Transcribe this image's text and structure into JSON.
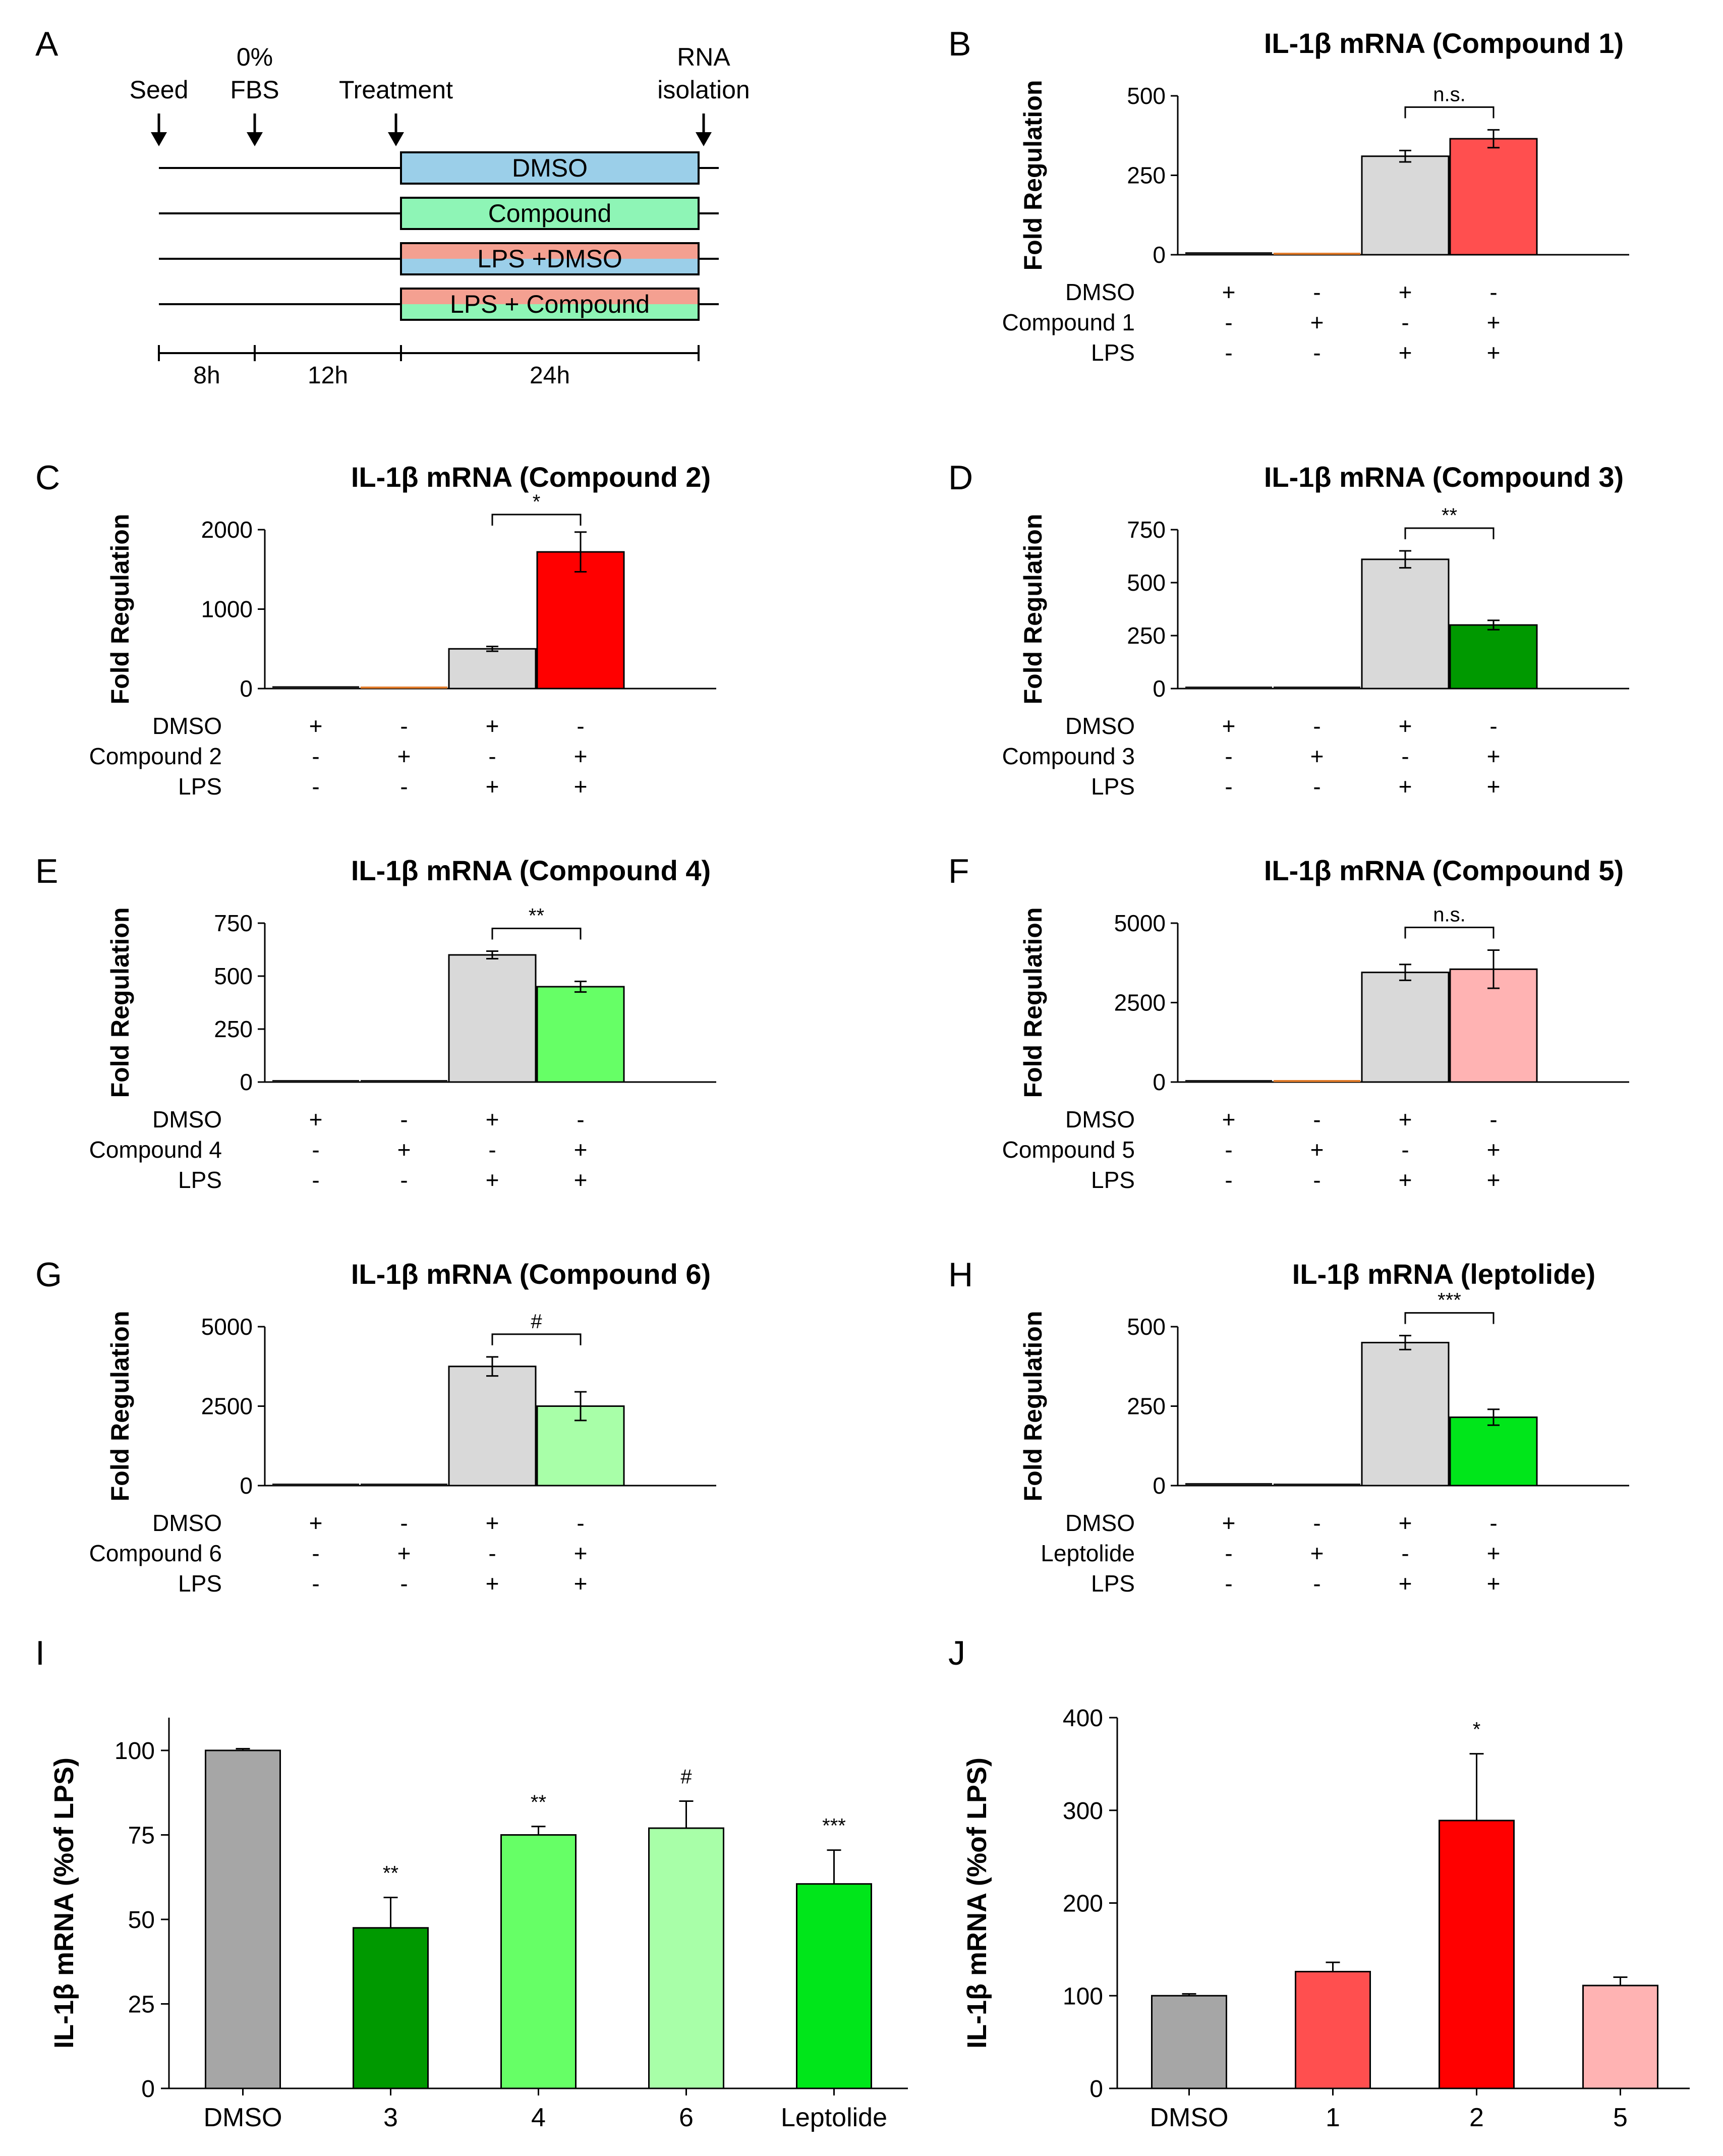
{
  "schema": {
    "panel": "A",
    "events": [
      {
        "line1": "",
        "line2": "Seed"
      },
      {
        "line1": "0%",
        "line2": "FBS"
      },
      {
        "line1": "",
        "line2": "Treatment"
      },
      {
        "line1": "RNA",
        "line2": "isolation"
      }
    ],
    "treatments": [
      {
        "label": "DMSO",
        "colors": [
          "#9bcfe9"
        ]
      },
      {
        "label": "Compound",
        "colors": [
          "#8ef5b6"
        ]
      },
      {
        "label": "LPS +DMSO",
        "colors": [
          "#f4a091",
          "#9bcfe9"
        ]
      },
      {
        "label": "LPS + Compound",
        "colors": [
          "#f4a091",
          "#8ef5b6"
        ]
      }
    ],
    "timeline": [
      "8h",
      "12h",
      "24h"
    ]
  },
  "chart_data": [
    {
      "panel": "B",
      "type": "bar",
      "title": "IL-1β mRNA (Compound 1)",
      "ylabel": "Fold Regulation",
      "yticks": [
        0,
        250,
        500
      ],
      "ylim": [
        0,
        500
      ],
      "values": [
        8,
        5,
        310,
        365
      ],
      "errors": [
        0,
        0,
        18,
        28
      ],
      "colors": [
        "#1a1a1a",
        "#e07b2b",
        "#d9d9d9",
        "#ff4f4f"
      ],
      "significance": "n.s.",
      "row_labels": [
        "DMSO",
        "Compound 1",
        "LPS"
      ],
      "rows": [
        [
          "+",
          "-",
          "+",
          "-"
        ],
        [
          "-",
          "+",
          "-",
          "+"
        ],
        [
          "-",
          "-",
          "+",
          "+"
        ]
      ]
    },
    {
      "panel": "C",
      "type": "bar",
      "title": "IL-1β mRNA (Compound 2)",
      "ylabel": "Fold Regulation",
      "yticks": [
        0,
        1000,
        2000
      ],
      "ylim": [
        0,
        2000
      ],
      "values": [
        30,
        3,
        500,
        1720
      ],
      "errors": [
        0,
        0,
        30,
        250
      ],
      "colors": [
        "#1a1a1a",
        "#e07b2b",
        "#d9d9d9",
        "#ff0000"
      ],
      "significance": "*",
      "row_labels": [
        "DMSO",
        "Compound 2",
        "LPS"
      ],
      "rows": [
        [
          "+",
          "-",
          "+",
          "-"
        ],
        [
          "-",
          "+",
          "-",
          "+"
        ],
        [
          "-",
          "-",
          "+",
          "+"
        ]
      ]
    },
    {
      "panel": "D",
      "type": "bar",
      "title": "IL-1β mRNA (Compound 3)",
      "ylabel": "Fold Regulation",
      "yticks": [
        0,
        250,
        500,
        750
      ],
      "ylim": [
        0,
        750
      ],
      "values": [
        8,
        6,
        610,
        300
      ],
      "errors": [
        0,
        0,
        40,
        22
      ],
      "colors": [
        "#1a1a1a",
        "#1a1a1a",
        "#d9d9d9",
        "#009900"
      ],
      "significance": "**",
      "row_labels": [
        "DMSO",
        "Compound 3",
        "LPS"
      ],
      "rows": [
        [
          "+",
          "-",
          "+",
          "-"
        ],
        [
          "-",
          "+",
          "-",
          "+"
        ],
        [
          "-",
          "-",
          "+",
          "+"
        ]
      ]
    },
    {
      "panel": "E",
      "type": "bar",
      "title": "IL-1β mRNA (Compound 4)",
      "ylabel": "Fold Regulation",
      "yticks": [
        0,
        250,
        500,
        750
      ],
      "ylim": [
        0,
        750
      ],
      "values": [
        8,
        6,
        600,
        450
      ],
      "errors": [
        0,
        0,
        18,
        25
      ],
      "colors": [
        "#1a1a1a",
        "#1a1a1a",
        "#d9d9d9",
        "#66ff66"
      ],
      "significance": "**",
      "row_labels": [
        "DMSO",
        "Compound 4",
        "LPS"
      ],
      "rows": [
        [
          "+",
          "-",
          "+",
          "-"
        ],
        [
          "-",
          "+",
          "-",
          "+"
        ],
        [
          "-",
          "-",
          "+",
          "+"
        ]
      ]
    },
    {
      "panel": "F",
      "type": "bar",
      "title": "IL-1β mRNA (Compound 5)",
      "ylabel": "Fold Regulation",
      "yticks": [
        0,
        2500,
        5000
      ],
      "ylim": [
        0,
        5000
      ],
      "values": [
        60,
        40,
        3450,
        3550
      ],
      "errors": [
        0,
        0,
        250,
        600
      ],
      "colors": [
        "#1a1a1a",
        "#e07b2b",
        "#d9d9d9",
        "#ffb3b3"
      ],
      "significance": "n.s.",
      "row_labels": [
        "DMSO",
        "Compound 5",
        "LPS"
      ],
      "rows": [
        [
          "+",
          "-",
          "+",
          "-"
        ],
        [
          "-",
          "+",
          "-",
          "+"
        ],
        [
          "-",
          "-",
          "+",
          "+"
        ]
      ]
    },
    {
      "panel": "G",
      "type": "bar",
      "title": "IL-1β mRNA (Compound 6)",
      "ylabel": "Fold Regulation",
      "yticks": [
        0,
        2500,
        5000
      ],
      "ylim": [
        0,
        5000
      ],
      "values": [
        60,
        50,
        3750,
        2500
      ],
      "errors": [
        0,
        0,
        300,
        450
      ],
      "colors": [
        "#1a1a1a",
        "#1a1a1a",
        "#d9d9d9",
        "#a8ffa8"
      ],
      "significance": "#",
      "row_labels": [
        "DMSO",
        "Compound 6",
        "LPS"
      ],
      "rows": [
        [
          "+",
          "-",
          "+",
          "-"
        ],
        [
          "-",
          "+",
          "-",
          "+"
        ],
        [
          "-",
          "-",
          "+",
          "+"
        ]
      ]
    },
    {
      "panel": "H",
      "type": "bar",
      "title": "IL-1β mRNA (leptolide)",
      "ylabel": "Fold Regulation",
      "yticks": [
        0,
        250,
        500
      ],
      "ylim": [
        0,
        500
      ],
      "values": [
        8,
        6,
        450,
        215
      ],
      "errors": [
        0,
        0,
        22,
        25
      ],
      "colors": [
        "#1a1a1a",
        "#1a1a1a",
        "#d9d9d9",
        "#00e61a"
      ],
      "significance": "***",
      "row_labels": [
        "DMSO",
        "Leptolide",
        "LPS"
      ],
      "rows": [
        [
          "+",
          "-",
          "+",
          "-"
        ],
        [
          "-",
          "+",
          "-",
          "+"
        ],
        [
          "-",
          "-",
          "+",
          "+"
        ]
      ]
    },
    {
      "panel": "I",
      "type": "bar",
      "ylabel": "IL-1β mRNA (%of LPS)",
      "categories": [
        "DMSO",
        "3",
        "4",
        "6",
        "Leptolide"
      ],
      "values": [
        100,
        47.5,
        75,
        77,
        60.5
      ],
      "errors": [
        0.5,
        9,
        2.5,
        8,
        10
      ],
      "colors": [
        "#a6a6a6",
        "#009900",
        "#66ff66",
        "#a8ffa8",
        "#00e61a"
      ],
      "significance": [
        "",
        "**",
        "**",
        "#",
        "***"
      ],
      "yticks": [
        0,
        25,
        50,
        75,
        100
      ],
      "ylim": [
        0,
        110
      ]
    },
    {
      "panel": "J",
      "type": "bar",
      "ylabel": "IL-1β mRNA (%of LPS)",
      "categories": [
        "DMSO",
        "1",
        "2",
        "5"
      ],
      "values": [
        100,
        126,
        289,
        111
      ],
      "errors": [
        2,
        10,
        72,
        9
      ],
      "colors": [
        "#a6a6a6",
        "#ff4f4f",
        "#ff0000",
        "#ffb3b3"
      ],
      "significance": [
        "",
        "",
        "*",
        ""
      ],
      "yticks": [
        0,
        100,
        200,
        300,
        400
      ],
      "ylim": [
        0,
        400
      ]
    }
  ]
}
